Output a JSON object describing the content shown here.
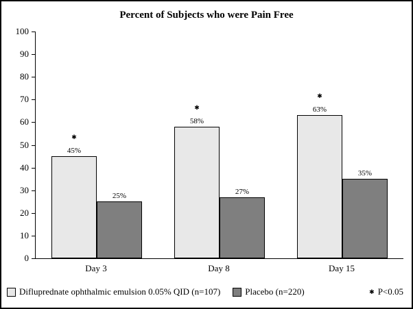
{
  "chart_data": {
    "type": "bar",
    "title": "Percent of Subjects who were Pain Free",
    "categories": [
      "Day 3",
      "Day 8",
      "Day 15"
    ],
    "series": [
      {
        "name": "Difluprednate ophthalmic emulsion 0.05% QID (n=107)",
        "color": "#e8e8e8",
        "values": [
          45,
          58,
          63
        ],
        "value_labels": [
          "45%",
          "58%",
          "63%"
        ]
      },
      {
        "name": "Placebo (n=220)",
        "color": "#7f7f7f",
        "values": [
          25,
          27,
          35
        ],
        "value_labels": [
          "25%",
          "27%",
          "35%"
        ]
      }
    ],
    "significant": [
      true,
      true,
      true
    ],
    "significance_marker": "✱",
    "significance_label": "P<0.05",
    "xlabel": "",
    "ylabel": "",
    "ylim": [
      0,
      100
    ],
    "yticks": [
      100,
      90,
      80,
      70,
      60,
      50,
      40,
      30,
      20,
      10,
      0
    ],
    "grid": false,
    "legend_position": "bottom"
  }
}
